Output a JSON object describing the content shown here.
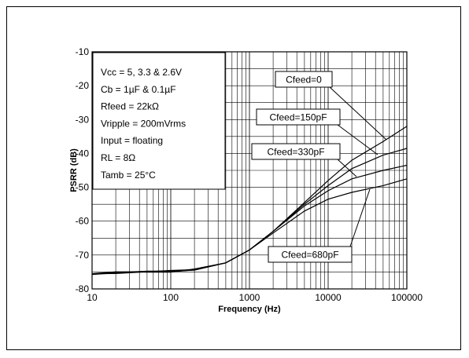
{
  "chart_data": {
    "type": "line",
    "xlabel": "Frequency (Hz)",
    "ylabel": "PSRR (dB)",
    "xscale": "log",
    "xlim": [
      10,
      100000
    ],
    "ylim": [
      -80,
      -10
    ],
    "x_ticks": [
      "10",
      "100",
      "1000",
      "10000",
      "100000"
    ],
    "y_ticks": [
      "-10",
      "-20",
      "-30",
      "-40",
      "-50",
      "-60",
      "-70",
      "-80"
    ],
    "grid": true,
    "info_box": [
      "Vcc = 5, 3.3 & 2.6V",
      "Cb = 1µF & 0.1µF",
      "Rfeed = 22kΩ",
      "Vripple = 200mVrms",
      "Input = floating",
      "RL = 8Ω",
      "Tamb  = 25°C"
    ],
    "series": [
      {
        "name": "Cfeed=0",
        "x": [
          10,
          20,
          50,
          100,
          200,
          500,
          1000,
          2000,
          5000,
          10000,
          20000,
          50000,
          100000
        ],
        "y": [
          -75.5,
          -75.2,
          -75,
          -74.8,
          -74.2,
          -72.3,
          -68.5,
          -63,
          -54.5,
          -48,
          -42,
          -36.5,
          -32
        ]
      },
      {
        "name": "Cfeed=150pF",
        "x": [
          10,
          20,
          50,
          100,
          200,
          500,
          1000,
          2000,
          5000,
          10000,
          20000,
          50000,
          100000
        ],
        "y": [
          -75.5,
          -75.2,
          -75,
          -74.8,
          -74.2,
          -72.3,
          -68.5,
          -63,
          -55,
          -49.5,
          -44.5,
          -40.5,
          -38.5
        ]
      },
      {
        "name": "Cfeed=330pF",
        "x": [
          10,
          20,
          50,
          100,
          200,
          500,
          1000,
          2000,
          5000,
          10000,
          20000,
          50000,
          100000
        ],
        "y": [
          -75.5,
          -75.2,
          -75,
          -74.8,
          -74.2,
          -72.3,
          -68.5,
          -63,
          -55.5,
          -51,
          -47.5,
          -45,
          -43.5
        ]
      },
      {
        "name": "Cfeed=680pF",
        "x": [
          10,
          20,
          50,
          100,
          200,
          500,
          1000,
          2000,
          5000,
          10000,
          20000,
          50000,
          100000
        ],
        "y": [
          -75.5,
          -75.2,
          -75,
          -74.8,
          -74.2,
          -72.3,
          -68.5,
          -63.5,
          -57,
          -53.5,
          -51.5,
          -49.5,
          -47.5
        ]
      }
    ]
  }
}
